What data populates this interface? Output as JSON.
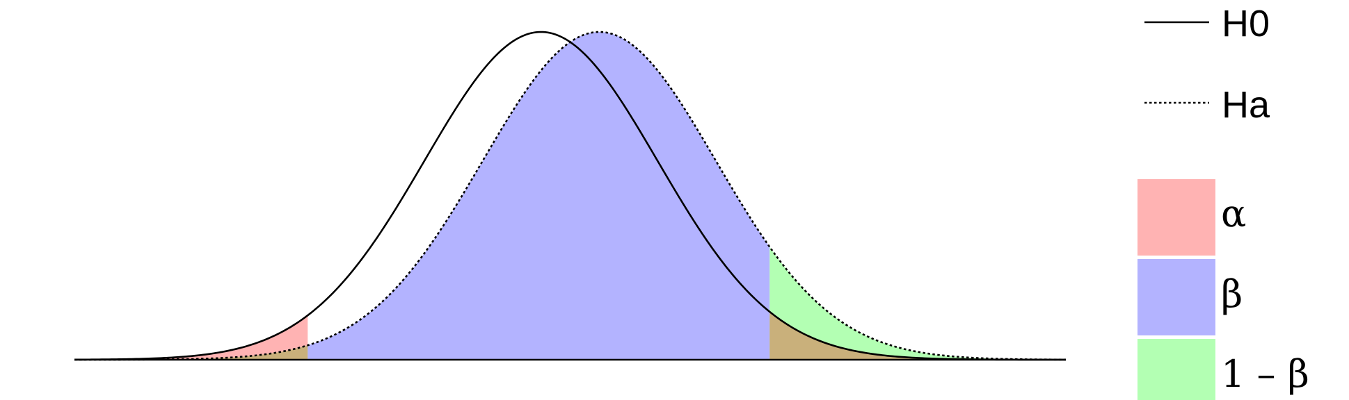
{
  "chart_data": {
    "type": "area",
    "title": "",
    "xlabel": "",
    "ylabel": "",
    "grid": false,
    "legend_position": "right",
    "xlim": [
      -4.0,
      4.5
    ],
    "ylim": [
      0,
      0.42
    ],
    "critical_values": [
      -2.0,
      1.96
    ],
    "series": [
      {
        "name": "H0",
        "distribution": "normal",
        "mean": 0.0,
        "sd": 1.0,
        "line_style": "solid",
        "color": "#000000"
      },
      {
        "name": "Ha",
        "distribution": "normal",
        "mean": 0.5,
        "sd": 1.0,
        "line_style": "dotted",
        "color": "#000000"
      }
    ],
    "shaded_regions": [
      {
        "name": "α",
        "color": "#ffb3b3"
      },
      {
        "name": "β",
        "color": "#b3b3ff"
      },
      {
        "name": "1 – β",
        "color": "#b3ffb3"
      }
    ],
    "overlap_color": "#c9b07b"
  }
}
